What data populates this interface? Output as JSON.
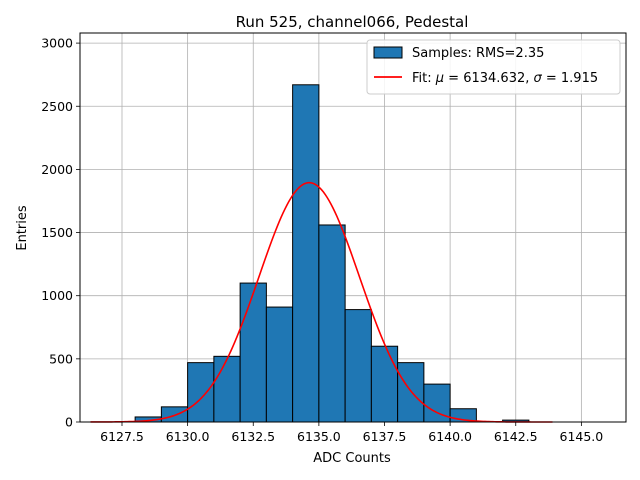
{
  "chart_data": {
    "type": "bar",
    "title": "Run 525, channel066, Pedestal",
    "xlabel": "ADC Counts",
    "ylabel": "Entries",
    "xlim": [
      6125.9,
      6146.7
    ],
    "ylim": [
      0,
      3080
    ],
    "xticks": [
      6127.5,
      6130.0,
      6132.5,
      6135.0,
      6137.5,
      6140.0,
      6142.5,
      6145.0
    ],
    "xtick_labels": [
      "6127.5",
      "6130.0",
      "6132.5",
      "6135.0",
      "6137.5",
      "6140.0",
      "6142.5",
      "6145.0"
    ],
    "yticks": [
      0,
      500,
      1000,
      1500,
      2000,
      2500,
      3000
    ],
    "ytick_labels": [
      "0",
      "500",
      "1000",
      "1500",
      "2000",
      "2500",
      "3000"
    ],
    "grid": true,
    "legend_position": "top-right",
    "histogram": {
      "name": "Samples: RMS=2.35",
      "color": "#1f77b4",
      "edge_color": "#000000",
      "bin_edges": [
        6128.0,
        6129.0,
        6130.0,
        6131.0,
        6132.0,
        6133.0,
        6134.0,
        6135.0,
        6136.0,
        6137.0,
        6138.0,
        6139.0,
        6140.0,
        6141.0,
        6142.0,
        6143.0
      ],
      "counts": [
        40,
        120,
        470,
        520,
        1100,
        910,
        2670,
        1560,
        890,
        600,
        470,
        300,
        105,
        0,
        15
      ]
    },
    "fit": {
      "name": "Fit: μ = 6134.632, σ = 1.915",
      "name_prefix": "Fit: ",
      "name_mu": "μ",
      "name_mid": " = 6134.632, ",
      "name_sigma": "σ",
      "name_suffix": " = 1.915",
      "color": "#ff0000",
      "mu": 6134.632,
      "sigma": 1.915,
      "amplitude": 1895,
      "x_range": [
        6126.3,
        6143.9
      ]
    }
  }
}
